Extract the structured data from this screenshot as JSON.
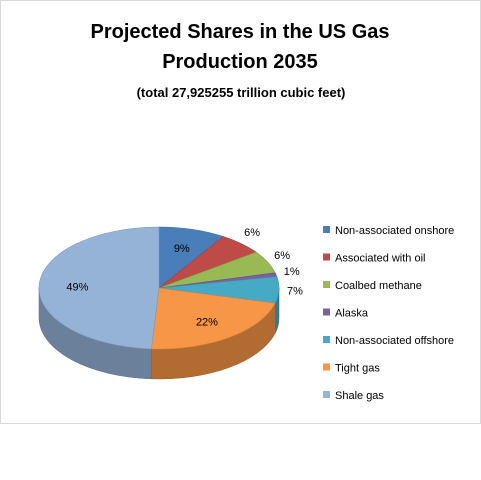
{
  "chart_data": {
    "type": "pie",
    "title": "Projected Shares in the US Gas Production  2035",
    "title_lines": [
      "Projected Shares in the US Gas",
      "Production  2035"
    ],
    "subtitle": "(total 27,925255 trillion cubic feet)",
    "categories": [
      "Non-associated onshore",
      "Associated with oil",
      "Coalbed methane",
      "Alaska",
      "Non-associated offshore",
      "Tight gas",
      "Shale gas"
    ],
    "values": [
      9,
      6,
      6,
      1,
      7,
      22,
      49
    ],
    "data_labels": [
      "9%",
      "6%",
      "6%",
      "1%",
      "7%",
      "22%",
      "49%"
    ],
    "colors": [
      "#4a7ebb",
      "#be4b48",
      "#98b954",
      "#7d60a0",
      "#46aac5",
      "#f79646",
      "#95b3d7"
    ],
    "style": "3-D pie",
    "legend_position": "right"
  }
}
